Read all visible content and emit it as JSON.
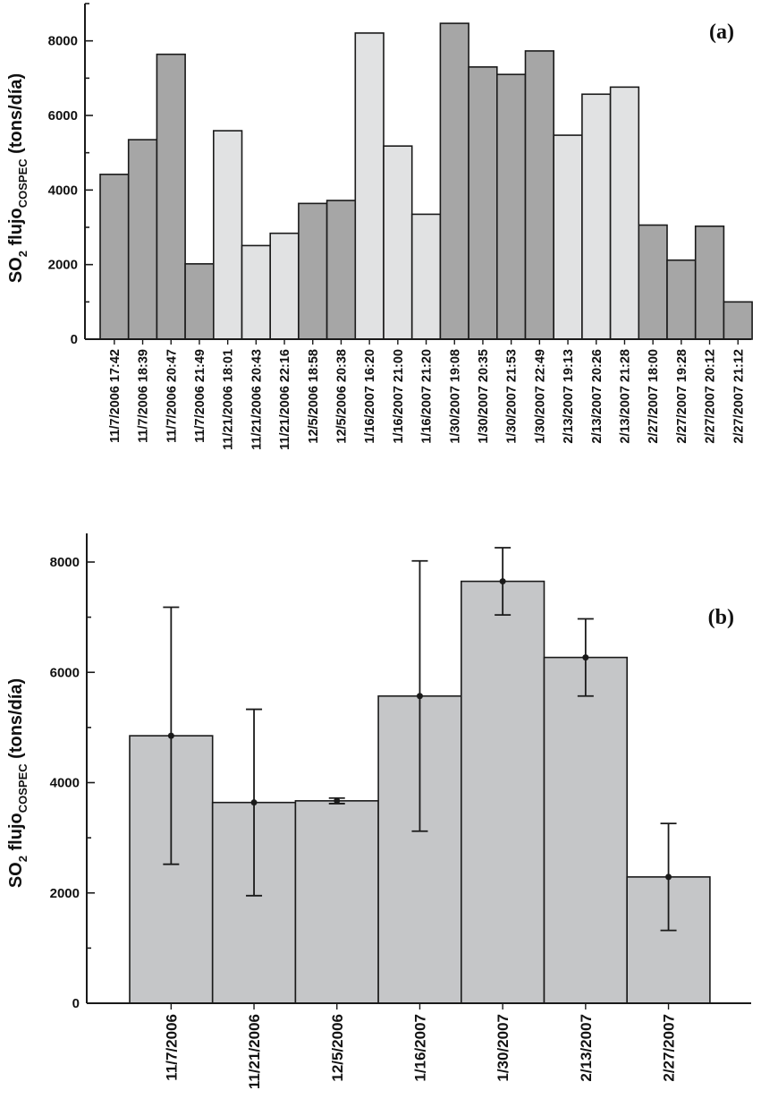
{
  "chart_data": [
    {
      "type": "bar",
      "panel_label": "(a)",
      "ylabel": {
        "main": "SO",
        "sub1": "2",
        "mid": " flujo",
        "sub2": "COSPEC",
        "unit": " (tons/día)"
      },
      "ylim": [
        0,
        9000
      ],
      "yticks": [
        "0",
        "2000",
        "4000",
        "6000",
        "8000"
      ],
      "grid": false,
      "colors": {
        "dark": "#a6a6a6",
        "light": "#e1e2e3",
        "stroke": "#1a1a1a"
      },
      "categories": [
        "11/7/2006 17:42",
        "11/7/2006 18:39",
        "11/7/2006 20:47",
        "11/7/2006 21:49",
        "11/21/2006 18:01",
        "11/21/2006 20:43",
        "11/21/2006 22:16",
        "12/5/2006 18:58",
        "12/5/2006 20:38",
        "1/16/2007 16:20",
        "1/16/2007 21:00",
        "1/16/2007 21:20",
        "1/30/2007 19:08",
        "1/30/2007 20:35",
        "1/30/2007 21:53",
        "1/30/2007 22:49",
        "2/13/2007 19:13",
        "2/13/2007 20:26",
        "2/13/2007 21:28",
        "2/27/2007 18:00",
        "2/27/2007 19:28",
        "2/27/2007 20:12",
        "2/27/2007 21:12"
      ],
      "values": [
        4420,
        5350,
        7640,
        2020,
        5590,
        2510,
        2840,
        3640,
        3720,
        8210,
        5180,
        3350,
        8470,
        7300,
        7100,
        7730,
        5470,
        6570,
        6760,
        3060,
        2120,
        3030,
        1000
      ],
      "shade": [
        "dark",
        "dark",
        "dark",
        "dark",
        "light",
        "light",
        "light",
        "dark",
        "dark",
        "light",
        "light",
        "light",
        "dark",
        "dark",
        "dark",
        "dark",
        "light",
        "light",
        "light",
        "dark",
        "dark",
        "dark",
        "dark"
      ]
    },
    {
      "type": "bar",
      "panel_label": "(b)",
      "ylabel": {
        "main": "SO",
        "sub1": "2",
        "mid": " flujo",
        "sub2": "COSPEC",
        "unit": " (tons/día)"
      },
      "ylim": [
        0,
        8000
      ],
      "yticks": [
        "0",
        "2000",
        "4000",
        "6000",
        "8000"
      ],
      "grid": false,
      "colors": {
        "fill": "#c5c6c8",
        "stroke": "#1a1a1a"
      },
      "categories": [
        "11/7/2006",
        "11/21/2006",
        "12/5/2006",
        "1/16/2007",
        "1/30/2007",
        "2/13/2007",
        "2/27/2007"
      ],
      "values": [
        4850,
        3640,
        3670,
        5570,
        7650,
        6270,
        2290
      ],
      "error": [
        2330,
        1690,
        50,
        2450,
        610,
        700,
        970
      ]
    }
  ]
}
